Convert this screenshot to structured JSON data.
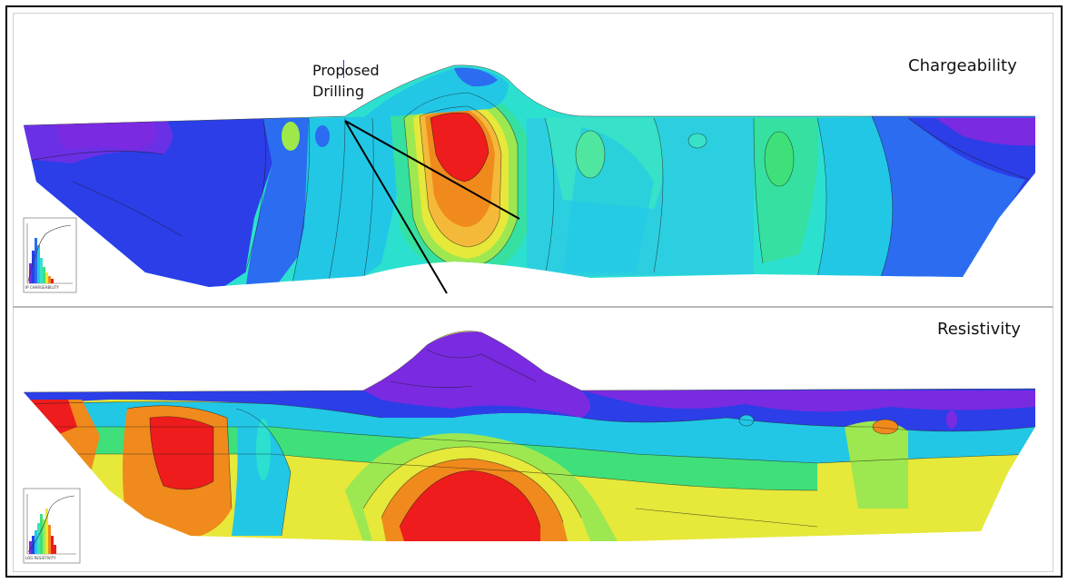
{
  "top_panel": {
    "title": "Chargeability",
    "histogram_caption": "IP CHARGEABILITY"
  },
  "bottom_panel": {
    "title": "Resistivity",
    "histogram_caption": "LOG RESISTIVITY"
  },
  "annotation": {
    "line1": "Proposed",
    "line2": "Drilling"
  },
  "colors": {
    "violet": "#7a2ae0",
    "blue": "#2b3ee8",
    "cyan": "#22c7e6",
    "aqua": "#38e2c8",
    "green": "#3fe07a",
    "yellow": "#e6e83a",
    "orange": "#f08a1c",
    "red": "#ee1c1c"
  }
}
